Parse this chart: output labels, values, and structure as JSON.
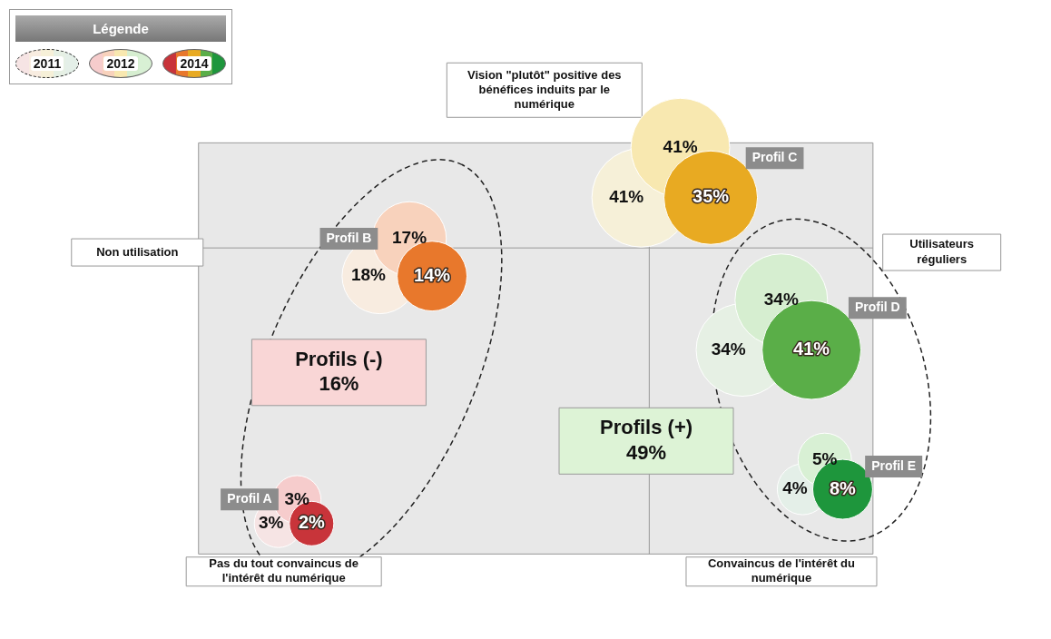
{
  "chart_data": {
    "type": "other",
    "legend_title": "Légende",
    "legend": "top left",
    "categories": [
      "Profil A",
      "Profil B",
      "Profil C",
      "Profil D",
      "Profil E"
    ],
    "series": [
      {
        "name": "2011",
        "colors": [
          "#f6e4e4",
          "#f8ece0",
          "#f6f0d8",
          "#e6f0e4",
          "#e4efe8"
        ],
        "values": [
          3,
          18,
          41,
          34,
          4
        ],
        "value_labels": [
          "3%",
          "18%",
          "41%",
          "34%",
          "4%"
        ]
      },
      {
        "name": "2012",
        "colors": [
          "#f6cccc",
          "#f8d2bc",
          "#f8e8b0",
          "#d6eed0",
          "#d8f0d4"
        ],
        "values": [
          3,
          17,
          41,
          34,
          5
        ],
        "value_labels": [
          "3%",
          "17%",
          "41%",
          "34%",
          "5%"
        ]
      },
      {
        "name": "2014",
        "colors": [
          "#c8343a",
          "#e8782c",
          "#e8aa22",
          "#5aae48",
          "#1e963c"
        ],
        "values": [
          2,
          14,
          35,
          41,
          8
        ],
        "value_labels": [
          "2%",
          "14%",
          "35%",
          "41%",
          "8%"
        ]
      }
    ],
    "annotations": [
      "Vision \"plutôt\" positive des bénéfices induits par le numérique",
      "Non utilisation",
      "Utilisateurs réguliers",
      "Pas du tout convaincus de l'intérêt du numérique",
      "Convaincus de l'intérêt du numérique",
      "Profils (-) 16%",
      "Profils (+) 49%"
    ]
  }
}
